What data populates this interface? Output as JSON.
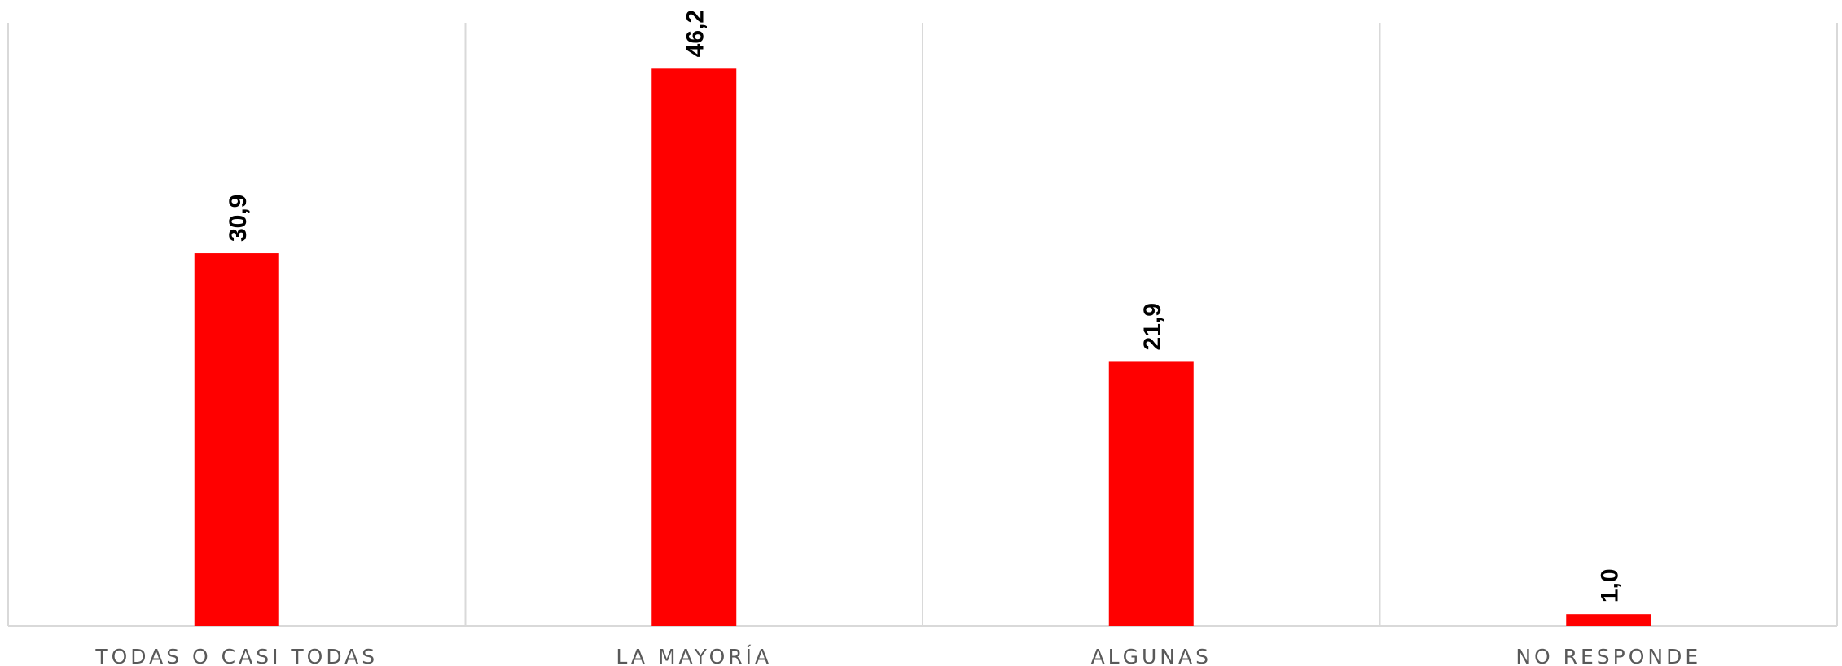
{
  "chart_data": {
    "type": "bar",
    "categories": [
      "TODAS O CASI TODAS",
      "LA MAYORÍA",
      "ALGUNAS",
      "NO RESPONDE"
    ],
    "values": [
      30.9,
      46.2,
      21.9,
      1.0
    ],
    "value_labels": [
      "30,9",
      "46,2",
      "21,9",
      "1,0"
    ],
    "title": "",
    "xlabel": "",
    "ylabel": "",
    "ylim": [
      0,
      50
    ],
    "grid": "vertical category separators",
    "legend": "none",
    "bar_color": "#FF0000",
    "label_color": "#000000",
    "axis_label_color": "#595959",
    "grid_color": "#D9D9D9"
  }
}
